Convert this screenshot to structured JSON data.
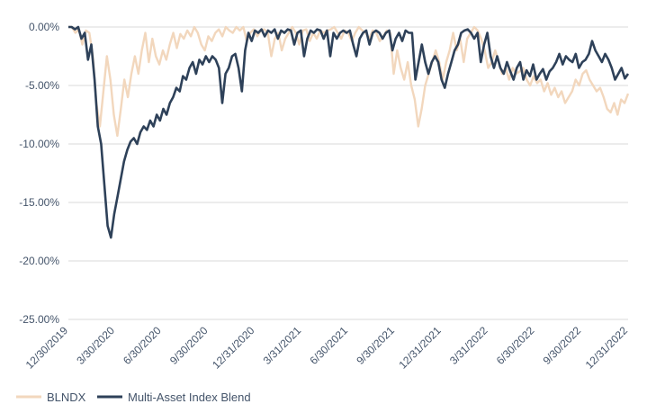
{
  "chart_data": {
    "type": "line",
    "title": "",
    "xlabel": "",
    "ylabel": "",
    "ylim": [
      -25,
      0
    ],
    "yticks": [
      {
        "value": 0,
        "label": "0.00%"
      },
      {
        "value": -5,
        "label": "-5.00%"
      },
      {
        "value": -10,
        "label": "-10.00%"
      },
      {
        "value": -15,
        "label": "-15.00%"
      },
      {
        "value": -20,
        "label": "-20.00%"
      },
      {
        "value": -25,
        "label": "-25.00%"
      }
    ],
    "xticks": [
      "12/30/2019",
      "3/30/2020",
      "6/30/2020",
      "9/30/2020",
      "12/31/2020",
      "3/31/2021",
      "6/30/2021",
      "9/30/2021",
      "12/31/2021",
      "3/31/2022",
      "6/30/2022",
      "9/30/2022",
      "12/31/2022"
    ],
    "grid": "horizontal",
    "legend": "bottom-left",
    "series": [
      {
        "name": "BLNDX",
        "color": "#f2d7bd",
        "values": [
          0,
          0,
          -0.5,
          -0.2,
          -1.5,
          -0.3,
          -0.5,
          -2.5,
          -6.5,
          -8.5,
          -5.5,
          -2.5,
          -4.5,
          -7.5,
          -9.3,
          -7,
          -4.5,
          -6,
          -4,
          -2.5,
          -4,
          -2,
          -0.5,
          -3,
          -1,
          -2.5,
          -3.2,
          -2,
          -2.8,
          -1.5,
          -0.5,
          -1.8,
          -0.6,
          -1,
          -0.3,
          -0.8,
          0,
          -0.5,
          -1.5,
          -2,
          -0.8,
          -1.2,
          -0.5,
          -0.2,
          -0.8,
          0,
          -0.3,
          -0.5,
          0,
          -0.3,
          0,
          -1.2,
          -0.5,
          -0.2,
          -0.8,
          -0.3,
          -0.2,
          -0.5,
          -2.5,
          -1,
          -0.5,
          -2,
          -1,
          -0.5,
          0,
          -0.5,
          -1.5,
          -0.3,
          -0.2,
          -1.2,
          -0.5,
          -1,
          -0.3,
          -0.5,
          -0.3,
          -0.2,
          0,
          -0.5,
          -1,
          -0.3,
          -0.5,
          -1.2,
          -0.5,
          0,
          -0.3,
          -0.5,
          -1,
          -0.3,
          -0.5,
          -1.2,
          -0.8,
          -0.3,
          -0.5,
          -4,
          -2,
          -3.5,
          -4.5,
          -3,
          -5,
          -6.2,
          -8.5,
          -7,
          -5,
          -4,
          -3,
          -2,
          -3,
          -4.5,
          -3,
          -2,
          -0.5,
          -2,
          -1,
          -3,
          -1,
          -0.5,
          0,
          -0.3,
          -1,
          -2,
          -3.5,
          -3,
          -2,
          -3,
          -4,
          -3.5,
          -4.5,
          -3.5,
          -4,
          -3.8,
          -3.5,
          -4.5,
          -5,
          -4.2,
          -4.8,
          -4.5,
          -5.5,
          -4.8,
          -5.8,
          -5.2,
          -6,
          -5.5,
          -6.5,
          -6,
          -5.5,
          -4.5,
          -5,
          -4,
          -3.7,
          -4.5,
          -5,
          -5.5,
          -5.2,
          -6,
          -7,
          -7.3,
          -6.5,
          -7.5,
          -6.2,
          -6.5,
          -5.7
        ]
      },
      {
        "name": "Multi-Asset Index Blend",
        "color": "#2e4159",
        "values": [
          0,
          0,
          -0.2,
          0,
          -1,
          -0.5,
          -2.8,
          -1.5,
          -4.5,
          -8.5,
          -10,
          -13.5,
          -17,
          -18,
          -16,
          -14.5,
          -13,
          -11.5,
          -10.5,
          -9.8,
          -9.5,
          -10,
          -9,
          -8.5,
          -8.8,
          -8,
          -8.5,
          -7.5,
          -8,
          -7,
          -7.5,
          -6.5,
          -6,
          -5.2,
          -5.5,
          -4.2,
          -4.5,
          -3.5,
          -3,
          -4,
          -2.8,
          -3.2,
          -2.5,
          -3,
          -2.5,
          -2.8,
          -3.5,
          -6.5,
          -4,
          -3.5,
          -2.5,
          -2.3,
          -3.5,
          -5.5,
          -2,
          -0.5,
          -1.2,
          -0.3,
          -0.5,
          -0.2,
          -0.8,
          -0.3,
          -0.5,
          -0.2,
          -1,
          -0.3,
          -0.5,
          -0.2,
          -0.3,
          -1.5,
          -0.5,
          -0.3,
          -2.5,
          -1,
          -0.3,
          -0.5,
          -0.2,
          -0.3,
          -1,
          -0.3,
          -2.5,
          -0.5,
          -1,
          -0.5,
          -0.3,
          -0.5,
          -0.3,
          -1.5,
          -2.5,
          -1,
          -0.5,
          -0.3,
          -1.5,
          -0.5,
          -0.3,
          -0.5,
          -1,
          -0.5,
          -0.3,
          -2,
          -1,
          -0.5,
          -1.2,
          -0.3,
          -0.5,
          -0.5,
          -4.5,
          -3,
          -1.5,
          -3,
          -4,
          -3,
          -2.5,
          -3,
          -4.5,
          -5.2,
          -4,
          -3,
          -2,
          -1.5,
          -0.5,
          -0.3,
          -0.2,
          -0.5,
          -1,
          -0.5,
          -3,
          -1.5,
          -0.5,
          -2.5,
          -3.5,
          -2.5,
          -3.5,
          -4,
          -3,
          -3.8,
          -4.5,
          -3.5,
          -3,
          -4.5,
          -3.7,
          -4.2,
          -3.2,
          -4.5,
          -4,
          -3.6,
          -4.5,
          -3.8,
          -3.5,
          -3,
          -2.3,
          -3.2,
          -2.5,
          -2.8,
          -3,
          -2.3,
          -3.5,
          -3,
          -2.8,
          -2.3,
          -1.2,
          -2,
          -2.5,
          -3,
          -2.3,
          -2.8,
          -3.5,
          -4.5,
          -4,
          -3.5,
          -4.4,
          -4
        ]
      }
    ]
  }
}
